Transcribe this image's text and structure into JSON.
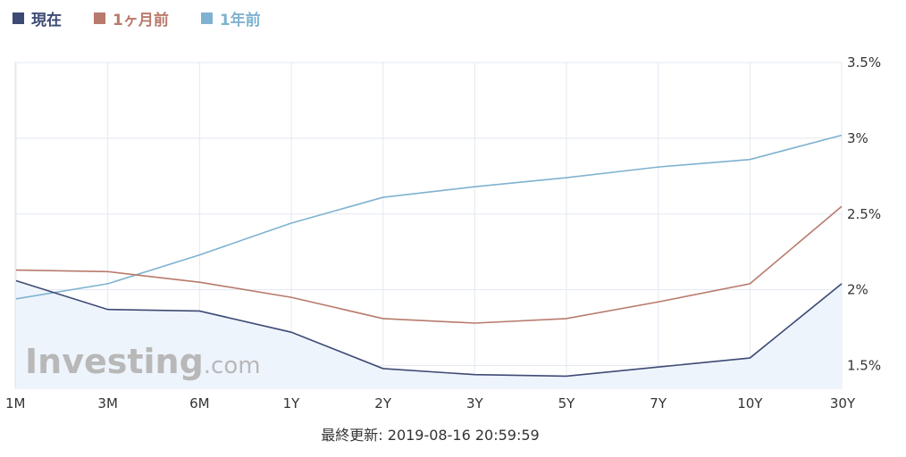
{
  "legend": [
    {
      "label": "現在",
      "color": "#3d4a74"
    },
    {
      "label": "1ヶ月前",
      "color": "#b87a6c"
    },
    {
      "label": "1年前",
      "color": "#7fb2d0"
    }
  ],
  "watermark": {
    "brand": "Investing",
    "suffix": ".com"
  },
  "footer": {
    "text": "最終更新: 2019-08-16 20:59:59"
  },
  "chart_data": {
    "type": "line",
    "categories": [
      "1M",
      "3M",
      "6M",
      "1Y",
      "2Y",
      "3Y",
      "5Y",
      "7Y",
      "10Y",
      "30Y"
    ],
    "y_ticks": [
      {
        "value": 1.5,
        "label": "1.5%"
      },
      {
        "value": 2.0,
        "label": "2%"
      },
      {
        "value": 2.5,
        "label": "2.5%"
      },
      {
        "value": 3.0,
        "label": "3%"
      },
      {
        "value": 3.5,
        "label": "3.5%"
      }
    ],
    "ylim": [
      1.35,
      3.5
    ],
    "grid": true,
    "y_axis_position": "right",
    "legend_position": "top-left",
    "series": [
      {
        "name": "現在",
        "color": "#3d4a74",
        "filled": true,
        "values": [
          2.06,
          1.87,
          1.86,
          1.72,
          1.48,
          1.44,
          1.43,
          1.49,
          1.55,
          2.04
        ]
      },
      {
        "name": "1ヶ月前",
        "color": "#b87a6c",
        "filled": false,
        "values": [
          2.13,
          2.12,
          2.05,
          1.95,
          1.81,
          1.78,
          1.81,
          1.92,
          2.04,
          2.55
        ]
      },
      {
        "name": "1年前",
        "color": "#7fb2d0",
        "filled": false,
        "values": [
          1.94,
          2.04,
          2.23,
          2.44,
          2.61,
          2.68,
          2.74,
          2.81,
          2.86,
          3.02
        ]
      }
    ]
  }
}
